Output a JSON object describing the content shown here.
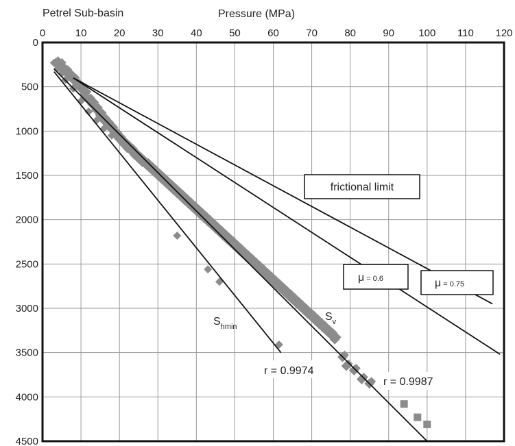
{
  "chart_data": {
    "type": "scatter",
    "title": "Petrel Sub-basin",
    "xlabel": "Pressure (MPa)",
    "ylabel": "",
    "xlim": [
      0,
      120
    ],
    "ylim": [
      0,
      4500
    ],
    "y_inverted": true,
    "x_axis_position": "top",
    "grid": true,
    "x_ticks": [
      0,
      10,
      20,
      30,
      40,
      50,
      60,
      70,
      80,
      90,
      100,
      110,
      120
    ],
    "y_ticks": [
      0,
      500,
      1000,
      1500,
      2000,
      2500,
      3000,
      3500,
      4000,
      4500
    ],
    "y_tick_labels": [
      "0",
      "500",
      "1000",
      "1500",
      "2000",
      "2500",
      "3000",
      "3500",
      "4000",
      "4500"
    ],
    "colors": {
      "points": "#8c8c8c",
      "lines": "#111111",
      "grid": "#999999"
    },
    "sv_points": [
      [
        3.5,
        230
      ],
      [
        4.5,
        250
      ],
      [
        5,
        300
      ],
      [
        6,
        330
      ],
      [
        7,
        380
      ],
      [
        8,
        420
      ],
      [
        9,
        480
      ],
      [
        10,
        520
      ],
      [
        11,
        580
      ],
      [
        12,
        650
      ],
      [
        13,
        700
      ],
      [
        14,
        760
      ],
      [
        15,
        820
      ],
      [
        16,
        880
      ],
      [
        17,
        930
      ],
      [
        18,
        980
      ],
      [
        19,
        1040
      ],
      [
        20,
        1090
      ],
      [
        21,
        1140
      ],
      [
        22,
        1180
      ],
      [
        23,
        1220
      ],
      [
        24,
        1270
      ],
      [
        25,
        1310
      ],
      [
        26,
        1350
      ],
      [
        27,
        1380
      ],
      [
        28,
        1420
      ],
      [
        29,
        1460
      ],
      [
        30,
        1500
      ],
      [
        31,
        1540
      ],
      [
        32,
        1580
      ],
      [
        33,
        1620
      ],
      [
        34,
        1660
      ],
      [
        35,
        1700
      ],
      [
        36,
        1740
      ],
      [
        37,
        1780
      ],
      [
        38,
        1820
      ],
      [
        39,
        1860
      ],
      [
        40,
        1900
      ],
      [
        41,
        1940
      ],
      [
        42,
        1980
      ],
      [
        43,
        2020
      ],
      [
        44,
        2060
      ],
      [
        45,
        2100
      ],
      [
        46,
        2140
      ],
      [
        47,
        2180
      ],
      [
        48,
        2220
      ],
      [
        49,
        2260
      ],
      [
        50,
        2300
      ],
      [
        51,
        2340
      ],
      [
        52,
        2380
      ],
      [
        53,
        2420
      ],
      [
        54,
        2460
      ],
      [
        55,
        2500
      ],
      [
        56,
        2540
      ],
      [
        57,
        2580
      ],
      [
        58,
        2620
      ],
      [
        59,
        2660
      ],
      [
        60,
        2700
      ],
      [
        61,
        2740
      ],
      [
        62,
        2780
      ],
      [
        63,
        2820
      ],
      [
        64,
        2860
      ],
      [
        65,
        2900
      ],
      [
        66,
        2940
      ],
      [
        67,
        2980
      ],
      [
        68,
        3020
      ],
      [
        69,
        3060
      ],
      [
        70,
        3100
      ],
      [
        71,
        3140
      ],
      [
        72,
        3180
      ],
      [
        73,
        3220
      ],
      [
        74,
        3260
      ],
      [
        75,
        3300
      ],
      [
        76,
        3350
      ],
      [
        78,
        3550
      ],
      [
        79,
        3650
      ],
      [
        81,
        3700
      ],
      [
        83,
        3800
      ],
      [
        85,
        3850
      ],
      [
        94,
        4080
      ],
      [
        97.5,
        4230
      ],
      [
        100,
        4310
      ]
    ],
    "shmin_points": [
      [
        3,
        230
      ],
      [
        4,
        290
      ],
      [
        5,
        350
      ],
      [
        6,
        420
      ],
      [
        8,
        520
      ],
      [
        10,
        660
      ],
      [
        12,
        780
      ],
      [
        14,
        880
      ],
      [
        16,
        970
      ],
      [
        18,
        1050
      ],
      [
        21,
        1130
      ],
      [
        22,
        1200
      ],
      [
        35,
        2180
      ],
      [
        43,
        2560
      ],
      [
        46,
        2700
      ],
      [
        61.5,
        3410
      ]
    ],
    "lines": [
      {
        "name": "S_v",
        "from": [
          3,
          300
        ],
        "to": [
          100,
          4500
        ]
      },
      {
        "name": "S_hmin",
        "from": [
          3,
          330
        ],
        "to": [
          62,
          3500
        ]
      },
      {
        "name": "mu_0.6",
        "from": [
          8,
          400
        ],
        "to": [
          119,
          3520
        ]
      },
      {
        "name": "mu_0.75",
        "from": [
          8,
          400
        ],
        "to": [
          117,
          2950
        ]
      }
    ],
    "annotations": {
      "frictional_limit": "frictional limit",
      "mu_symbol": "μ",
      "mu_06": "= 0.6",
      "mu_075": "= 0.75",
      "shmin_main": "S",
      "shmin_sub": "hmin",
      "sv_main": "S",
      "sv_sub": "v",
      "r_shmin": "r = 0.9974",
      "r_sv": "r = 0.9987"
    }
  }
}
